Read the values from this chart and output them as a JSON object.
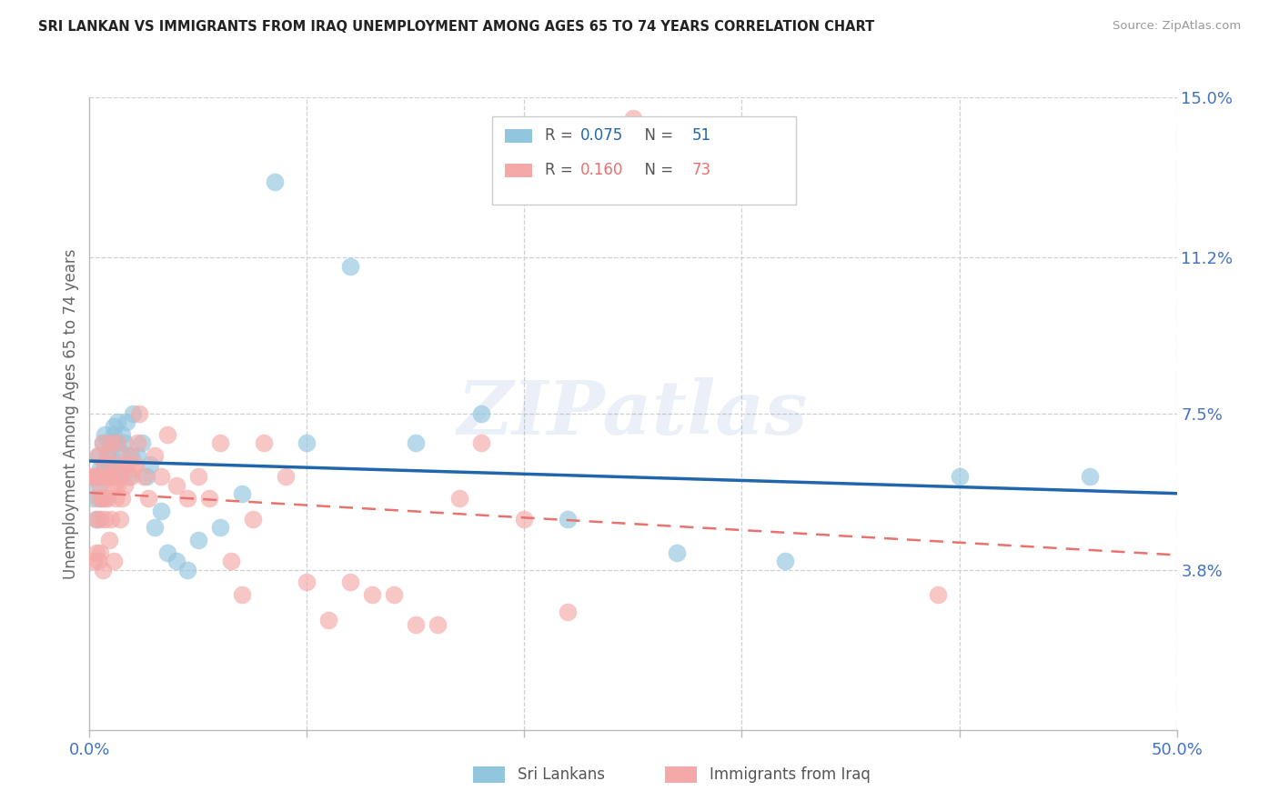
{
  "title": "SRI LANKAN VS IMMIGRANTS FROM IRAQ UNEMPLOYMENT AMONG AGES 65 TO 74 YEARS CORRELATION CHART",
  "source": "Source: ZipAtlas.com",
  "ylabel": "Unemployment Among Ages 65 to 74 years",
  "xlim": [
    0.0,
    0.5
  ],
  "ylim": [
    0.0,
    0.15
  ],
  "yticks_right": [
    0.038,
    0.075,
    0.112,
    0.15
  ],
  "ytick_labels_right": [
    "3.8%",
    "7.5%",
    "11.2%",
    "15.0%"
  ],
  "legend_label1": "Sri Lankans",
  "legend_label2": "Immigrants from Iraq",
  "sri_lankan_color": "#92c5de",
  "iraq_color": "#f4a9a8",
  "sri_lankan_line_color": "#2166ac",
  "iraq_line_color": "#e8726d",
  "background_color": "#ffffff",
  "grid_color": "#d0d0d0",
  "watermark_text": "ZIPatlas",
  "sri_lankan_R": "0.075",
  "sri_lankan_N": "51",
  "iraq_R": "0.160",
  "iraq_N": "73",
  "sri_lankan_x": [
    0.002,
    0.003,
    0.003,
    0.004,
    0.004,
    0.005,
    0.005,
    0.006,
    0.006,
    0.007,
    0.007,
    0.008,
    0.008,
    0.009,
    0.009,
    0.01,
    0.01,
    0.011,
    0.011,
    0.012,
    0.012,
    0.013,
    0.014,
    0.015,
    0.016,
    0.017,
    0.018,
    0.019,
    0.02,
    0.022,
    0.024,
    0.026,
    0.028,
    0.03,
    0.033,
    0.036,
    0.04,
    0.045,
    0.05,
    0.06,
    0.07,
    0.085,
    0.1,
    0.12,
    0.15,
    0.18,
    0.22,
    0.27,
    0.32,
    0.4,
    0.46
  ],
  "sri_lankan_y": [
    0.055,
    0.06,
    0.05,
    0.065,
    0.058,
    0.062,
    0.055,
    0.06,
    0.068,
    0.063,
    0.07,
    0.065,
    0.06,
    0.063,
    0.068,
    0.065,
    0.068,
    0.07,
    0.072,
    0.068,
    0.062,
    0.073,
    0.066,
    0.07,
    0.068,
    0.073,
    0.06,
    0.065,
    0.075,
    0.065,
    0.068,
    0.06,
    0.063,
    0.048,
    0.052,
    0.042,
    0.04,
    0.038,
    0.045,
    0.048,
    0.056,
    0.13,
    0.068,
    0.11,
    0.068,
    0.075,
    0.05,
    0.042,
    0.04,
    0.06,
    0.06
  ],
  "iraq_x": [
    0.001,
    0.002,
    0.002,
    0.003,
    0.003,
    0.003,
    0.004,
    0.004,
    0.004,
    0.005,
    0.005,
    0.005,
    0.006,
    0.006,
    0.006,
    0.006,
    0.007,
    0.007,
    0.007,
    0.008,
    0.008,
    0.008,
    0.009,
    0.009,
    0.01,
    0.01,
    0.01,
    0.011,
    0.011,
    0.012,
    0.012,
    0.013,
    0.013,
    0.014,
    0.014,
    0.015,
    0.015,
    0.016,
    0.017,
    0.018,
    0.019,
    0.02,
    0.021,
    0.022,
    0.023,
    0.025,
    0.027,
    0.03,
    0.033,
    0.036,
    0.04,
    0.045,
    0.05,
    0.055,
    0.06,
    0.065,
    0.07,
    0.075,
    0.08,
    0.09,
    0.1,
    0.11,
    0.12,
    0.13,
    0.14,
    0.15,
    0.16,
    0.17,
    0.18,
    0.2,
    0.22,
    0.25,
    0.39
  ],
  "iraq_y": [
    0.06,
    0.06,
    0.04,
    0.06,
    0.05,
    0.042,
    0.055,
    0.065,
    0.04,
    0.058,
    0.05,
    0.042,
    0.068,
    0.055,
    0.06,
    0.038,
    0.055,
    0.063,
    0.05,
    0.065,
    0.055,
    0.06,
    0.06,
    0.045,
    0.068,
    0.06,
    0.05,
    0.058,
    0.04,
    0.063,
    0.055,
    0.068,
    0.058,
    0.06,
    0.05,
    0.062,
    0.055,
    0.058,
    0.063,
    0.065,
    0.06,
    0.062,
    0.063,
    0.068,
    0.075,
    0.06,
    0.055,
    0.065,
    0.06,
    0.07,
    0.058,
    0.055,
    0.06,
    0.055,
    0.068,
    0.04,
    0.032,
    0.05,
    0.068,
    0.06,
    0.035,
    0.026,
    0.035,
    0.032,
    0.032,
    0.025,
    0.025,
    0.055,
    0.068,
    0.05,
    0.028,
    0.145,
    0.032
  ]
}
